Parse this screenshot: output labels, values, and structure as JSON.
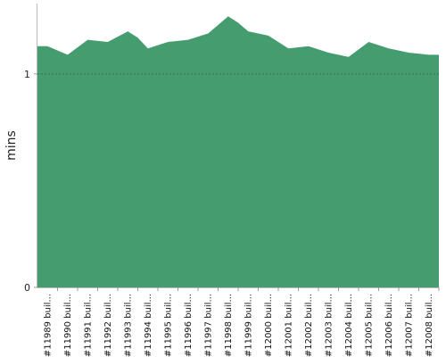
{
  "chart_data": {
    "type": "area",
    "ylabel": "mins",
    "xlabel": "",
    "title": "",
    "ylim": [
      0,
      1.33
    ],
    "y_ticks": [
      {
        "value": 0,
        "label": "0"
      },
      {
        "value": 1,
        "label": "1"
      }
    ],
    "reference_line": {
      "value": 1,
      "style": "dotted"
    },
    "grid": false,
    "categories": [
      "#11989 buil...",
      "#11990 buil...",
      "#11991 buil...",
      "#11992 buil...",
      "#11993 buil...",
      "#11994 buil...",
      "#11995 buil...",
      "#11996 buil...",
      "#11997 buil...",
      "#11998 buil...",
      "#11999 buil...",
      "#12000 buil...",
      "#12001 buil...",
      "#12002 buil...",
      "#12003 buil...",
      "#12004 buil...",
      "#12005 buil...",
      "#12006 buil...",
      "#12007 buil...",
      "#12008 buil..."
    ],
    "series": [
      {
        "values": [
          1.13,
          1.09,
          1.16,
          1.15,
          1.2,
          1.12,
          1.15,
          1.16,
          1.19,
          1.27,
          1.2,
          1.18,
          1.12,
          1.13,
          1.1,
          1.08,
          1.15,
          1.12,
          1.1,
          1.09
        ],
        "points": [
          {
            "x": 0,
            "y": 1.13
          },
          {
            "x": 1,
            "y": 1.09
          },
          {
            "x": 2,
            "y": 1.16
          },
          {
            "x": 3,
            "y": 1.15
          },
          {
            "x": 4,
            "y": 1.2
          },
          {
            "x": 4.5,
            "y": 1.17
          },
          {
            "x": 5,
            "y": 1.12
          },
          {
            "x": 6,
            "y": 1.15
          },
          {
            "x": 7,
            "y": 1.16
          },
          {
            "x": 8,
            "y": 1.19
          },
          {
            "x": 9,
            "y": 1.27
          },
          {
            "x": 9.5,
            "y": 1.24
          },
          {
            "x": 10,
            "y": 1.2
          },
          {
            "x": 11,
            "y": 1.18
          },
          {
            "x": 12,
            "y": 1.12
          },
          {
            "x": 13,
            "y": 1.13
          },
          {
            "x": 14,
            "y": 1.1
          },
          {
            "x": 15,
            "y": 1.08
          },
          {
            "x": 16,
            "y": 1.15
          },
          {
            "x": 17,
            "y": 1.12
          },
          {
            "x": 18,
            "y": 1.1
          },
          {
            "x": 19,
            "y": 1.09
          }
        ]
      }
    ],
    "colors": {
      "area_fill": "#459c6e",
      "reference_line": "#2e6b4a",
      "axis": "#333333"
    }
  }
}
